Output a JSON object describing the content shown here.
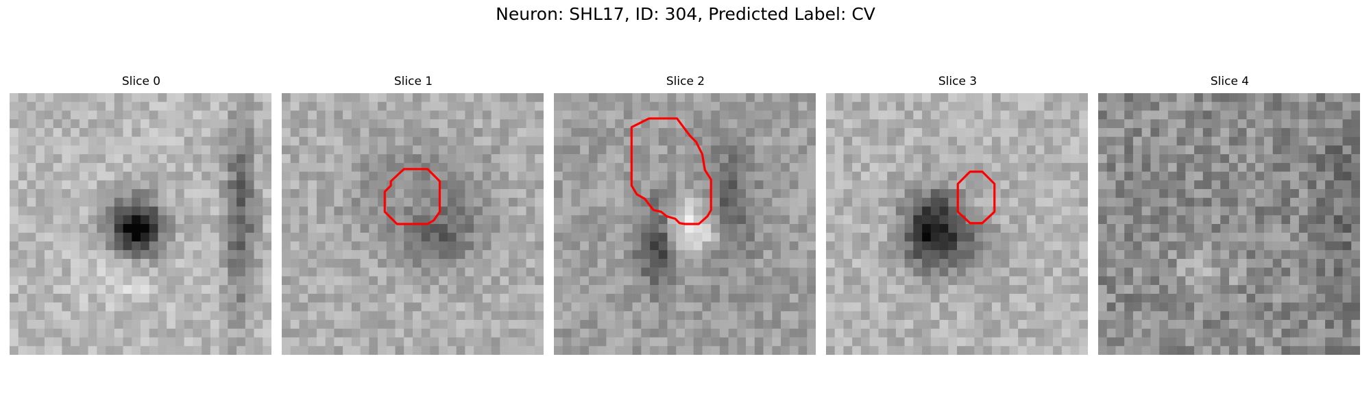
{
  "figure": {
    "title": "Neuron: SHL17, ID: 304, Predicted Label: CV"
  },
  "panels": [
    {
      "title": "Slice 0",
      "has_contour": false,
      "pattern": "dark-blob",
      "contour": []
    },
    {
      "title": "Slice 1",
      "has_contour": true,
      "pattern": "faint-ring",
      "contour": [
        [
          14.0,
          8.7
        ],
        [
          16.7,
          8.7
        ],
        [
          18.1,
          10.1
        ],
        [
          18.1,
          13.6
        ],
        [
          17.4,
          14.6
        ],
        [
          16.7,
          15.0
        ],
        [
          13.2,
          15.0
        ],
        [
          11.8,
          13.6
        ],
        [
          11.8,
          11.3
        ],
        [
          12.5,
          10.6
        ],
        [
          12.5,
          10.1
        ]
      ]
    },
    {
      "title": "Slice 2",
      "has_contour": true,
      "pattern": "bright-cell",
      "contour": [
        [
          10.9,
          2.9
        ],
        [
          12.3,
          2.9
        ],
        [
          14.1,
          2.9
        ],
        [
          15.6,
          4.9
        ],
        [
          16.3,
          5.6
        ],
        [
          17.0,
          7.0
        ],
        [
          17.3,
          8.8
        ],
        [
          18.0,
          9.9
        ],
        [
          18.0,
          13.4
        ],
        [
          17.6,
          14.1
        ],
        [
          16.6,
          15.0
        ],
        [
          15.0,
          15.0
        ],
        [
          14.4,
          14.9
        ],
        [
          13.9,
          14.4
        ],
        [
          12.9,
          14.1
        ],
        [
          12.3,
          13.6
        ],
        [
          11.4,
          13.4
        ],
        [
          10.4,
          12.1
        ],
        [
          9.5,
          11.6
        ],
        [
          8.9,
          10.6
        ],
        [
          8.9,
          9.6
        ],
        [
          8.9,
          3.9
        ]
      ]
    },
    {
      "title": "Slice 3",
      "has_contour": true,
      "pattern": "dark-blob-offset",
      "contour": [
        [
          16.5,
          9.0
        ],
        [
          17.9,
          9.0
        ],
        [
          19.3,
          10.4
        ],
        [
          19.3,
          13.6
        ],
        [
          17.9,
          14.9
        ],
        [
          16.5,
          14.9
        ],
        [
          15.1,
          13.6
        ],
        [
          15.1,
          10.4
        ]
      ]
    },
    {
      "title": "Slice 4",
      "has_contour": false,
      "pattern": "noise",
      "contour": []
    }
  ],
  "colors": {
    "contour": "#ff0000",
    "image_low": "#000000",
    "image_high": "#ffffff"
  }
}
